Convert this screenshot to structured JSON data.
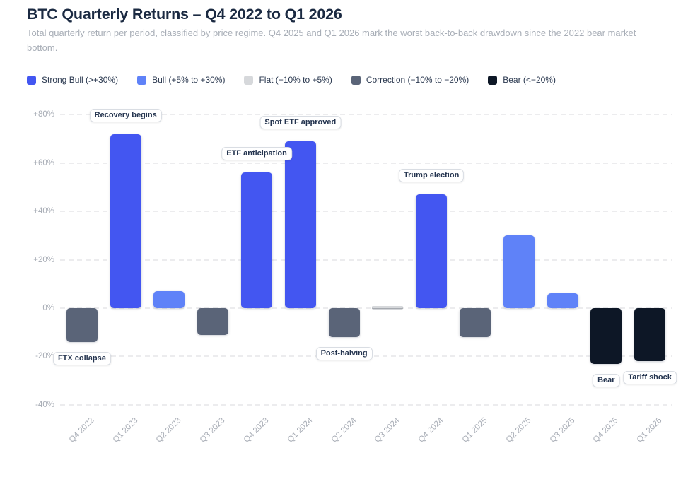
{
  "legend": {
    "items": [
      {
        "id": "strong_bull",
        "label": "Strong Bull (>+30%)",
        "color": "#4356f1"
      },
      {
        "id": "bull",
        "label": "Bull (+5% to +30%)",
        "color": "#5f82f8"
      },
      {
        "id": "flat",
        "label": "Flat (−10% to +5%)",
        "color": "#d6d8db"
      },
      {
        "id": "correction",
        "label": "Correction (−10% to −20%)",
        "color": "#5a6478"
      },
      {
        "id": "bear",
        "label": "Bear (<−20%)",
        "color": "#0d1726"
      }
    ]
  },
  "chart_data": {
    "type": "bar",
    "title": "BTC Quarterly Returns – Q4 2022 to Q1 2026",
    "subtitle": "Total quarterly return per period, classified by price regime. Q4 2025 and Q1 2026 mark the worst back-to-back drawdown since the 2022 bear market bottom.",
    "categories": [
      "Q4 2022",
      "Q1 2023",
      "Q2 2023",
      "Q3 2023",
      "Q4 2023",
      "Q1 2024",
      "Q2 2024",
      "Q3 2024",
      "Q4 2024",
      "Q1 2025",
      "Q2 2025",
      "Q3 2025",
      "Q4 2025",
      "Q1 2026"
    ],
    "values": [
      -14,
      72,
      7,
      -11,
      56,
      69,
      -12,
      1,
      47,
      -12,
      30,
      6,
      -23,
      -22
    ],
    "regimes": [
      "correction",
      "strong_bull",
      "bull",
      "correction",
      "strong_bull",
      "strong_bull",
      "correction",
      "flat",
      "strong_bull",
      "correction",
      "bull",
      "bull",
      "bear",
      "bear"
    ],
    "unit": "%",
    "ylim": [
      -40,
      80
    ],
    "grid": "horizontal-dashed",
    "legend_position": "top",
    "y_ticks": [
      {
        "value": 80,
        "label": "+80%"
      },
      {
        "value": 60,
        "label": "+60%"
      },
      {
        "value": 40,
        "label": "+40%"
      },
      {
        "value": 20,
        "label": "+20%"
      },
      {
        "value": 0,
        "label": "0%"
      },
      {
        "value": -20,
        "label": "-20%"
      },
      {
        "value": -40,
        "label": "-40%"
      }
    ],
    "annotations": [
      {
        "label": "Recovery begins",
        "category": "Q1 2023",
        "placement": "above"
      },
      {
        "label": "ETF anticipation",
        "category": "Q4 2023",
        "placement": "above"
      },
      {
        "label": "Spot ETF approved",
        "category": "Q1 2024",
        "placement": "above"
      },
      {
        "label": "Trump election",
        "category": "Q4 2024",
        "placement": "above"
      },
      {
        "label": "FTX collapse",
        "category": "Q4 2022",
        "placement": "below"
      },
      {
        "label": "Post-halving",
        "category": "Q2 2024",
        "placement": "below"
      },
      {
        "label": "Bear",
        "category": "Q4 2025",
        "placement": "below"
      },
      {
        "label": "Tariff shock",
        "category": "Q1 2026",
        "placement": "below"
      }
    ]
  }
}
